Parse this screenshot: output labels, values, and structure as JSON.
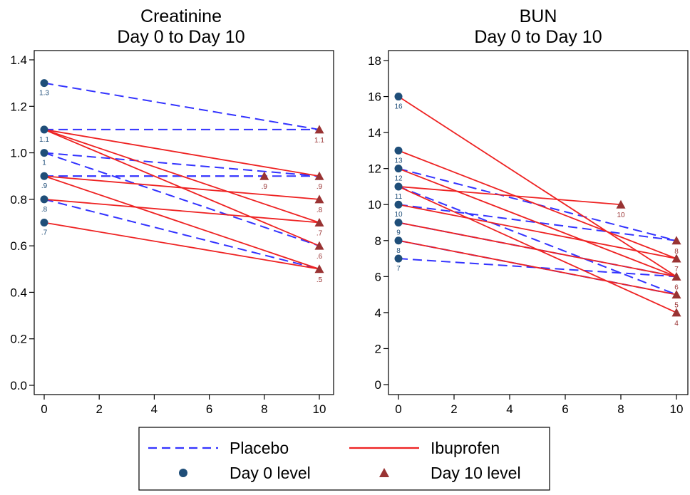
{
  "chart_data": [
    {
      "type": "line",
      "title": "Creatinine",
      "subtitle": "Day 0 to Day 10",
      "xlabel": "",
      "ylabel": "",
      "xlim": [
        0,
        10
      ],
      "ylim": [
        0,
        1.5
      ],
      "xticks": [
        "0",
        "2",
        "4",
        "6",
        "8",
        "10"
      ],
      "yticks": [
        "0.0",
        "0.2",
        "0.4",
        "0.6",
        "0.8",
        "1.0",
        "1.2",
        "1.4"
      ],
      "grid": false,
      "legend": "bottom",
      "series": [
        {
          "name": "Placebo",
          "pairs": [
            [
              0,
              1.3,
              10,
              1.1
            ],
            [
              0,
              1.1,
              10,
              1.1
            ],
            [
              0,
              1.0,
              10,
              0.9
            ],
            [
              0,
              1.0,
              10,
              0.6
            ],
            [
              0,
              0.9,
              8,
              0.9
            ],
            [
              0,
              0.9,
              10,
              0.9
            ],
            [
              0,
              0.8,
              10,
              0.5
            ]
          ]
        },
        {
          "name": "Ibuprofen",
          "pairs": [
            [
              0,
              1.1,
              10,
              0.9
            ],
            [
              0,
              1.1,
              10,
              0.7
            ],
            [
              0,
              1.1,
              10,
              0.6
            ],
            [
              0,
              0.9,
              10,
              0.8
            ],
            [
              0,
              0.9,
              10,
              0.5
            ],
            [
              0,
              0.8,
              10,
              0.7
            ],
            [
              0,
              0.7,
              10,
              0.5
            ]
          ]
        }
      ],
      "day0_points": [
        {
          "x": 0,
          "y": 1.3,
          "label": "1.3"
        },
        {
          "x": 0,
          "y": 1.1,
          "label": "1.1"
        },
        {
          "x": 0,
          "y": 1.0,
          "label": "1"
        },
        {
          "x": 0,
          "y": 0.9,
          "label": ".9"
        },
        {
          "x": 0,
          "y": 0.8,
          "label": ".8"
        },
        {
          "x": 0,
          "y": 0.7,
          "label": ".7"
        }
      ],
      "day10_points": [
        {
          "x": 10,
          "y": 1.1,
          "label": "1.1"
        },
        {
          "x": 8,
          "y": 0.9,
          "label": ".9"
        },
        {
          "x": 10,
          "y": 0.9,
          "label": ".9"
        },
        {
          "x": 10,
          "y": 0.8,
          "label": ".8"
        },
        {
          "x": 10,
          "y": 0.7,
          "label": ".7"
        },
        {
          "x": 10,
          "y": 0.6,
          "label": ".6"
        },
        {
          "x": 10,
          "y": 0.5,
          "label": ".5"
        }
      ]
    },
    {
      "type": "line",
      "title": "BUN",
      "subtitle": "Day 0 to Day 10",
      "xlabel": "",
      "ylabel": "",
      "xlim": [
        0,
        10
      ],
      "ylim": [
        0,
        18
      ],
      "xticks": [
        "0",
        "2",
        "4",
        "6",
        "8",
        "10"
      ],
      "yticks": [
        "0",
        "2",
        "4",
        "6",
        "8",
        "10",
        "12",
        "14",
        "16",
        "18"
      ],
      "grid": false,
      "legend": "bottom",
      "series": [
        {
          "name": "Placebo",
          "pairs": [
            [
              0,
              12,
              10,
              8
            ],
            [
              0,
              11,
              10,
              5
            ],
            [
              0,
              10,
              10,
              8
            ],
            [
              0,
              9,
              10,
              6
            ],
            [
              0,
              8,
              10,
              5
            ],
            [
              0,
              7,
              10,
              6
            ]
          ]
        },
        {
          "name": "Ibuprofen",
          "pairs": [
            [
              0,
              16,
              10,
              6
            ],
            [
              0,
              13,
              10,
              7
            ],
            [
              0,
              12,
              10,
              6
            ],
            [
              0,
              11,
              8,
              10
            ],
            [
              0,
              11,
              10,
              4
            ],
            [
              0,
              10,
              10,
              7
            ],
            [
              0,
              9,
              10,
              6
            ],
            [
              0,
              8,
              10,
              5
            ]
          ]
        }
      ],
      "day0_points": [
        {
          "x": 0,
          "y": 16,
          "label": "16"
        },
        {
          "x": 0,
          "y": 13,
          "label": "13"
        },
        {
          "x": 0,
          "y": 12,
          "label": "12"
        },
        {
          "x": 0,
          "y": 11,
          "label": "11"
        },
        {
          "x": 0,
          "y": 10,
          "label": "10"
        },
        {
          "x": 0,
          "y": 9,
          "label": "9"
        },
        {
          "x": 0,
          "y": 8,
          "label": "8"
        },
        {
          "x": 0,
          "y": 7,
          "label": "7"
        }
      ],
      "day10_points": [
        {
          "x": 8,
          "y": 10,
          "label": "10"
        },
        {
          "x": 10,
          "y": 8,
          "label": "8"
        },
        {
          "x": 10,
          "y": 7,
          "label": "7"
        },
        {
          "x": 10,
          "y": 6,
          "label": "6"
        },
        {
          "x": 10,
          "y": 5,
          "label": "5"
        },
        {
          "x": 10,
          "y": 4,
          "label": "4"
        }
      ]
    }
  ],
  "legend": {
    "placebo_label": "Placebo",
    "ibuprofen_label": "Ibuprofen",
    "day0_label": "Day 0 level",
    "day10_label": "Day 10 level"
  },
  "colors": {
    "placebo": "#3333ff",
    "ibuprofen": "#ee2222",
    "day0_marker": "#1f4e79",
    "day10_marker": "#993333",
    "axis": "#000000"
  }
}
